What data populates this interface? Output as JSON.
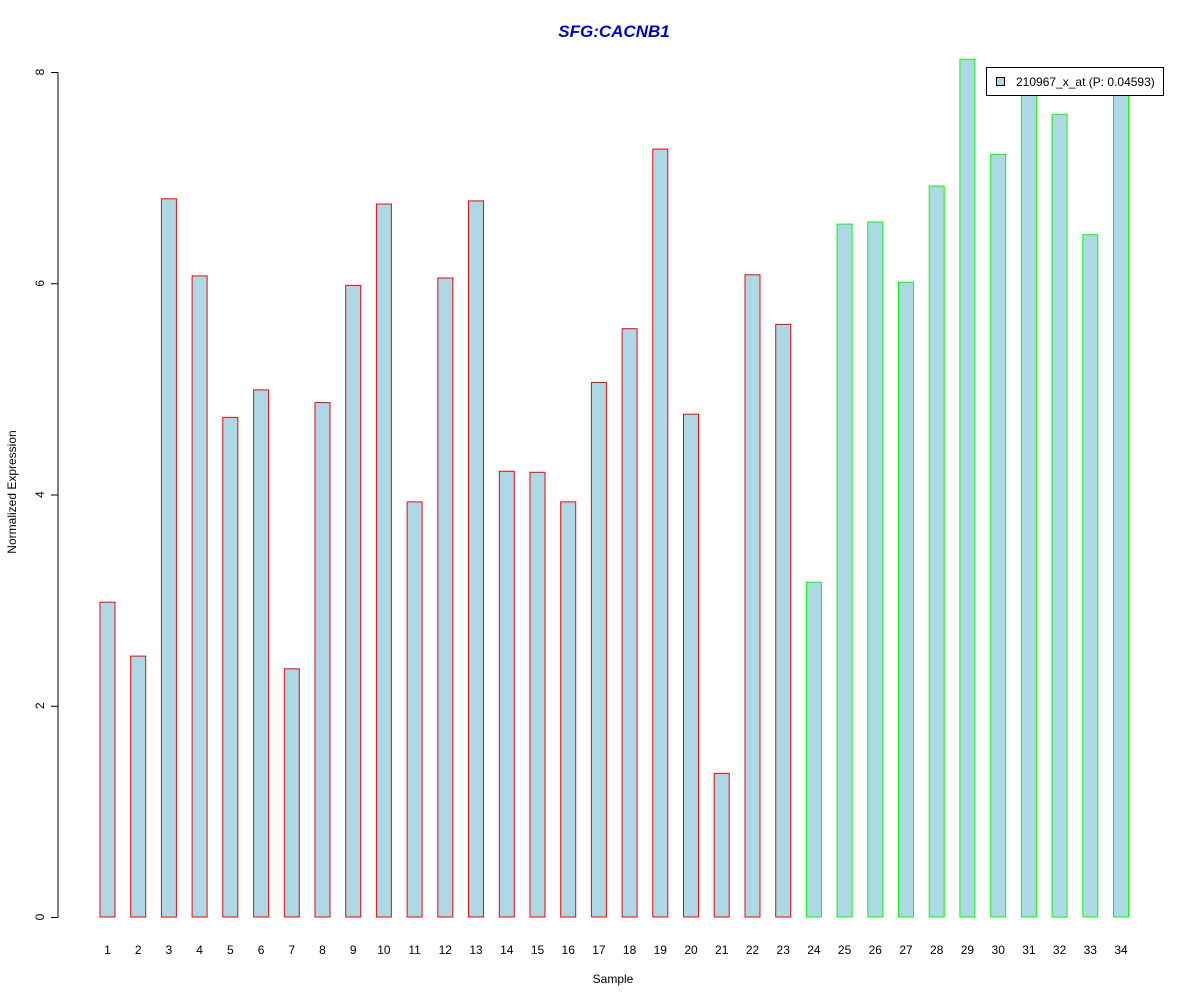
{
  "chart_data": {
    "type": "bar",
    "title": "SFG:CACNB1",
    "xlabel": "Sample",
    "ylabel": "Normalized Expression",
    "categories": [
      "1",
      "2",
      "3",
      "4",
      "5",
      "6",
      "7",
      "8",
      "9",
      "10",
      "11",
      "12",
      "13",
      "14",
      "15",
      "16",
      "17",
      "18",
      "19",
      "20",
      "21",
      "22",
      "23",
      "24",
      "25",
      "26",
      "27",
      "28",
      "29",
      "30",
      "31",
      "32",
      "33",
      "34"
    ],
    "series": [
      {
        "name": "210967_x_at (P: 0.04593)",
        "values": [
          2.98,
          2.47,
          6.8,
          6.07,
          4.73,
          4.99,
          2.35,
          4.87,
          5.98,
          6.75,
          3.93,
          6.05,
          6.78,
          4.22,
          4.21,
          3.93,
          5.06,
          5.57,
          7.27,
          4.76,
          1.36,
          6.08,
          5.61,
          3.17,
          6.56,
          6.58,
          6.01,
          6.92,
          8.12,
          7.22,
          7.8,
          7.6,
          6.46,
          7.8
        ]
      }
    ],
    "groups": [
      "red",
      "red",
      "red",
      "red",
      "red",
      "red",
      "red",
      "red",
      "red",
      "red",
      "red",
      "red",
      "red",
      "red",
      "red",
      "red",
      "red",
      "red",
      "red",
      "red",
      "red",
      "red",
      "red",
      "green",
      "green",
      "green",
      "green",
      "green",
      "green",
      "green",
      "green",
      "green",
      "green",
      "green"
    ],
    "ylim": [
      0,
      8
    ],
    "yticks": [
      "0",
      "2",
      "4",
      "6",
      "8"
    ],
    "grid": false,
    "legend_position": "top-right",
    "colors": {
      "fill": "#add8e6",
      "red": "#ff0000",
      "green": "#00ff00",
      "title": "#0000cc",
      "axis": "#000000"
    }
  }
}
